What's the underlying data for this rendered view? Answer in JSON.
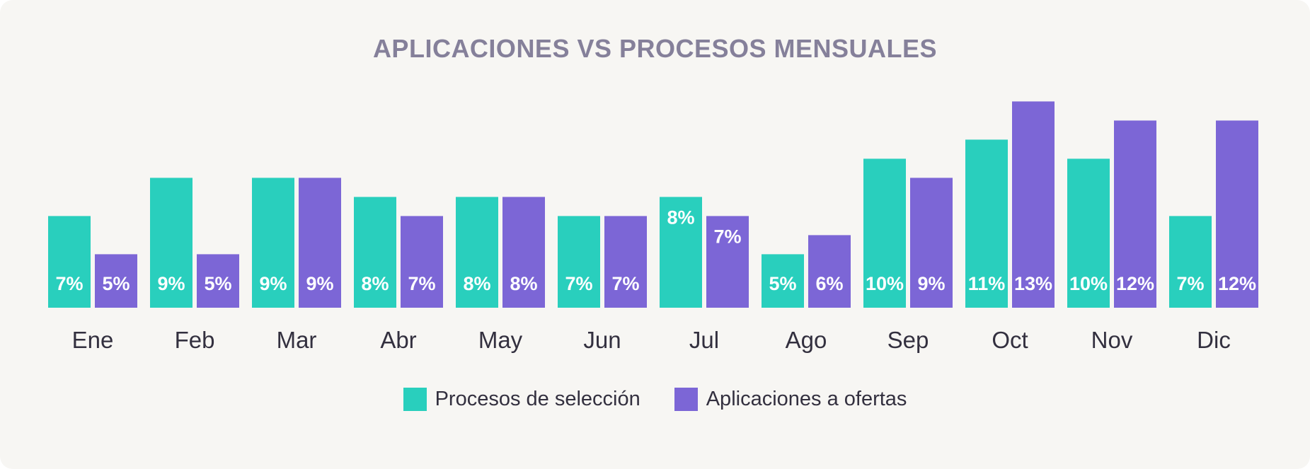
{
  "colors": {
    "background": "#f7f6f3",
    "series_1": "#29cfbd",
    "series_2": "#7c66d6",
    "title": "#85809a",
    "text": "#33303f",
    "bar_label": "#ffffff"
  },
  "chart_data": {
    "type": "bar",
    "title": "APLICACIONES VS PROCESOS MENSUALES",
    "xlabel": "",
    "ylabel": "",
    "grid": false,
    "legend_position": "bottom-center",
    "ylim": [
      2.2,
      14
    ],
    "categories": [
      "Ene",
      "Feb",
      "Mar",
      "Abr",
      "May",
      "Jun",
      "Jul",
      "Ago",
      "Sep",
      "Oct",
      "Nov",
      "Dic"
    ],
    "series": [
      {
        "name": "Procesos de selección",
        "values": [
          7,
          9,
          9,
          8,
          8,
          7,
          8,
          5,
          10,
          11,
          10,
          7
        ],
        "labels": [
          "7%",
          "9%",
          "9%",
          "8%",
          "8%",
          "7%",
          "8%",
          "5%",
          "10%",
          "11%",
          "10%",
          "7%"
        ]
      },
      {
        "name": "Aplicaciones a ofertas",
        "values": [
          5,
          5,
          9,
          7,
          8,
          7,
          7,
          6,
          9,
          13,
          12,
          12
        ],
        "labels": [
          "5%",
          "5%",
          "9%",
          "7%",
          "8%",
          "7%",
          "7%",
          "6%",
          "9%",
          "13%",
          "12%",
          "12%"
        ]
      }
    ]
  }
}
